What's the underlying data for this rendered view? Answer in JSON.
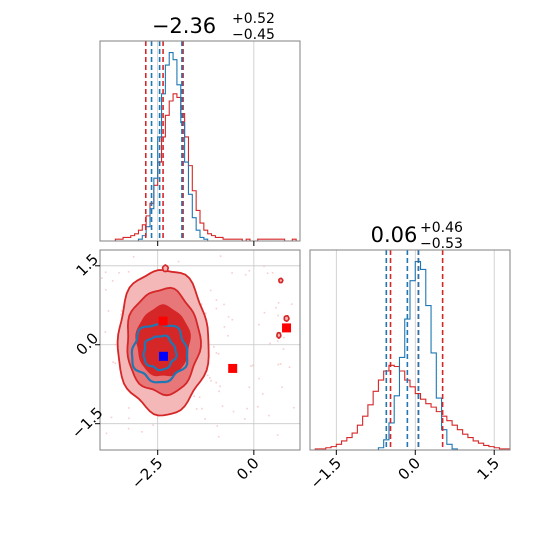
{
  "colors": {
    "red": "#d62728",
    "blue": "#1f77b4",
    "red_fill_dark": "#d62728",
    "red_fill_mid": "#e8777a",
    "red_fill_light": "#f4b8b9",
    "grid": "#c8c8c8",
    "marker_red": "#ff0000",
    "marker_blue": "#0000ff"
  },
  "chart_data": [
    {
      "type": "histogram",
      "panel": "top-left",
      "title": "−2.36",
      "title_sup": "+0.52",
      "title_sub": "−0.45",
      "xlim": [
        -4.0,
        1.2
      ],
      "x_ticks": [
        -2.5,
        0.0
      ],
      "x_tick_labels_visible": false,
      "grid": true,
      "series": [
        {
          "name": "",
          "color": "#d62728",
          "bin_start": -4.0,
          "bin_width": 0.1,
          "counts": [
            0,
            0,
            0,
            0,
            1,
            1,
            2,
            2,
            3,
            4,
            6,
            9,
            14,
            21,
            31,
            44,
            58,
            70,
            78,
            82,
            80,
            71,
            58,
            42,
            28,
            17,
            10,
            6,
            4,
            3,
            2,
            2,
            1,
            1,
            1,
            1,
            1,
            0,
            1,
            0,
            0,
            1,
            1,
            1,
            1,
            1,
            1,
            1,
            0,
            0,
            1,
            0
          ],
          "quantile_lines": [
            -2.81,
            -2.36,
            -1.84
          ]
        },
        {
          "name": "",
          "color": "#1f77b4",
          "bin_start": -4.0,
          "bin_width": 0.1,
          "counts": [
            0,
            0,
            0,
            0,
            0,
            0,
            0,
            0,
            0,
            0,
            1,
            3,
            8,
            18,
            35,
            58,
            82,
            98,
            105,
            101,
            87,
            66,
            44,
            26,
            13,
            6,
            2,
            1,
            0,
            0,
            0,
            0,
            0,
            0,
            0,
            0,
            0,
            0,
            0,
            0,
            0,
            0,
            0,
            0,
            0,
            0,
            0,
            0,
            0,
            0,
            0,
            0
          ],
          "quantile_lines": [
            -2.66,
            -2.45,
            -1.87
          ]
        }
      ]
    },
    {
      "type": "contour",
      "panel": "bottom-left",
      "xlim": [
        -4.0,
        1.2
      ],
      "ylim": [
        -2.0,
        1.8
      ],
      "x_ticks": [
        -2.5,
        0.0
      ],
      "x_tick_labels": [
        "−2.5",
        "0.0"
      ],
      "y_ticks": [
        -1.5,
        0.0,
        1.5
      ],
      "y_tick_labels": [
        "−1.5",
        "0.0",
        "1.5"
      ],
      "grid": true,
      "series": [
        {
          "name": "",
          "color": "#d62728",
          "center": [
            -2.36,
            0.06
          ],
          "contour_radii": [
            [
              0.68,
              0.66
            ],
            [
              0.95,
              1.0
            ],
            [
              1.18,
              1.38
            ]
          ]
        },
        {
          "name": "",
          "color": "#1f77b4",
          "center": [
            -2.45,
            -0.15
          ],
          "contour_radii": [
            [
              0.42,
              0.32
            ],
            [
              0.72,
              0.55
            ]
          ]
        }
      ],
      "markers": [
        {
          "x": -2.36,
          "y": 0.45,
          "color": "#ff0000"
        },
        {
          "x": -0.55,
          "y": -0.45,
          "color": "#ff0000"
        },
        {
          "x": 0.85,
          "y": 0.32,
          "color": "#ff0000"
        },
        {
          "x": -2.35,
          "y": -0.22,
          "color": "#0000ff"
        }
      ]
    },
    {
      "type": "histogram",
      "panel": "bottom-right",
      "title": "0.06",
      "title_sup": "+0.46",
      "title_sub": "−0.53",
      "xlim": [
        -2.0,
        1.8
      ],
      "x_ticks": [
        -1.5,
        0.0,
        1.5
      ],
      "x_tick_labels": [
        "−1.5",
        "0.0",
        "1.5"
      ],
      "grid": true,
      "series": [
        {
          "name": "",
          "color": "#d62728",
          "bin_start": -2.0,
          "bin_width": 0.1,
          "counts": [
            0,
            1,
            1,
            2,
            3,
            5,
            8,
            11,
            15,
            22,
            30,
            40,
            52,
            62,
            70,
            75,
            74,
            70,
            62,
            56,
            50,
            45,
            41,
            38,
            34,
            30,
            26,
            22,
            18,
            14,
            11,
            8,
            6,
            4,
            3,
            2,
            1,
            1
          ],
          "quantile_lines": [
            -0.47,
            0.06,
            0.52
          ]
        },
        {
          "name": "",
          "color": "#1f77b4",
          "bin_start": -2.0,
          "bin_width": 0.1,
          "counts": [
            0,
            0,
            0,
            0,
            0,
            0,
            0,
            0,
            0,
            0,
            0,
            0,
            0,
            2,
            9,
            24,
            48,
            82,
            116,
            150,
            167,
            160,
            128,
            86,
            46,
            18,
            5,
            1,
            0,
            0,
            0,
            0,
            0,
            0,
            0,
            0,
            0,
            0
          ],
          "quantile_lines": [
            -0.55,
            -0.15,
            0.06
          ]
        }
      ]
    }
  ]
}
